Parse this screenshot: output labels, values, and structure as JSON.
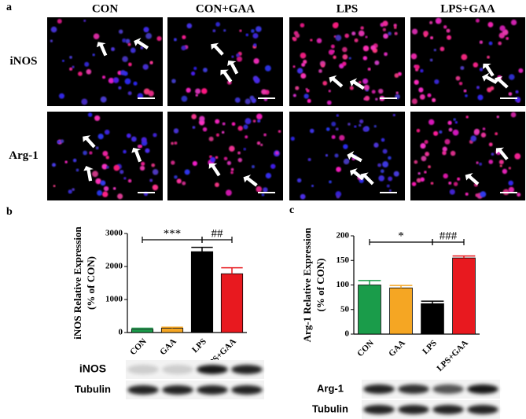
{
  "panel_labels": [
    "a",
    "b",
    "c"
  ],
  "image_grid": {
    "columns": [
      "CON",
      "CON+GAA",
      "LPS",
      "LPS+GAA"
    ],
    "rows": [
      "iNOS",
      "Arg-1"
    ]
  },
  "chart_data": [
    {
      "type": "bar",
      "ylabel": [
        "iNOS Relative Expression",
        "(% of CON)"
      ],
      "categories": [
        "CON",
        "GAA",
        "LPS",
        "LPS+GAA"
      ],
      "values": [
        100,
        130,
        2450,
        1780
      ],
      "errors": [
        30,
        30,
        130,
        180
      ],
      "colors": [
        "#1a9c4a",
        "#f5a623",
        "#000000",
        "#e8191f"
      ],
      "ylim": [
        0,
        3000
      ],
      "yticks": [
        0,
        1000,
        2000,
        3000
      ],
      "annotations": [
        "***",
        "##"
      ]
    },
    {
      "type": "bar",
      "ylabel": [
        "Arg-1 Relative Expression",
        "(% of CON)"
      ],
      "categories": [
        "CON",
        "GAA",
        "LPS",
        "LPS+GAA"
      ],
      "values": [
        100,
        94,
        62,
        155
      ],
      "errors": [
        9,
        5,
        5,
        4
      ],
      "colors": [
        "#1a9c4a",
        "#f5a623",
        "#000000",
        "#e8191f"
      ],
      "ylim": [
        0,
        200
      ],
      "yticks": [
        0,
        50,
        100,
        150,
        200
      ],
      "annotations": [
        "*",
        "###"
      ]
    }
  ],
  "blots": [
    {
      "labels": [
        "iNOS",
        "Tubulin"
      ]
    },
    {
      "labels": [
        "Arg-1",
        "Tubulin"
      ]
    }
  ]
}
